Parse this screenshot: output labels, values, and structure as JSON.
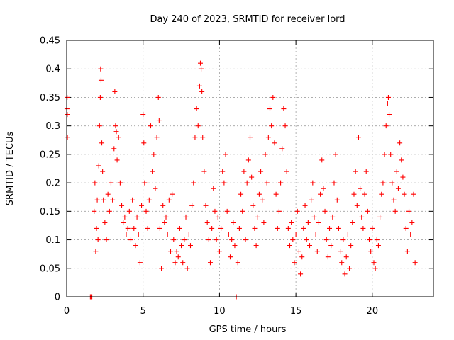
{
  "chart_data": {
    "type": "scatter",
    "title": "Day 240 of 2023, SRMTID for receiver lord",
    "xlabel": "GPS time / hours",
    "ylabel": "SRMTID / TECUs",
    "xlim": [
      0,
      24
    ],
    "ylim": [
      0,
      0.45
    ],
    "xticks": [
      0,
      5,
      10,
      15,
      20
    ],
    "xtick_labels": [
      "0",
      "5",
      "10",
      "15",
      "20"
    ],
    "yticks": [
      0,
      0.05,
      0.1,
      0.15,
      0.2,
      0.25,
      0.3,
      0.35,
      0.4,
      0.45
    ],
    "ytick_labels": [
      "0",
      "0.05",
      "0.1",
      "0.15",
      "0.2",
      "0.25",
      "0.3",
      "0.35",
      "0.4",
      "0.45"
    ],
    "grid": true,
    "marker": "+",
    "marker_color": "#ff0000",
    "series": [
      {
        "name": "SRMTID",
        "points": [
          [
            0.02,
            0.33
          ],
          [
            0.03,
            0.35
          ],
          [
            0.05,
            0.28
          ],
          [
            0.04,
            0.32
          ],
          [
            1.55,
            0.0
          ],
          [
            1.6,
            0.0
          ],
          [
            1.65,
            0.0
          ],
          [
            11.1,
            0.0
          ],
          [
            1.8,
            0.15
          ],
          [
            1.85,
            0.2
          ],
          [
            1.9,
            0.08
          ],
          [
            1.95,
            0.12
          ],
          [
            2.0,
            0.17
          ],
          [
            2.05,
            0.1
          ],
          [
            2.1,
            0.23
          ],
          [
            2.15,
            0.3
          ],
          [
            2.2,
            0.35
          ],
          [
            2.22,
            0.4
          ],
          [
            2.25,
            0.38
          ],
          [
            2.3,
            0.27
          ],
          [
            2.35,
            0.22
          ],
          [
            2.4,
            0.17
          ],
          [
            2.5,
            0.13
          ],
          [
            2.6,
            0.1
          ],
          [
            2.7,
            0.18
          ],
          [
            2.8,
            0.15
          ],
          [
            2.9,
            0.2
          ],
          [
            3.0,
            0.17
          ],
          [
            3.1,
            0.26
          ],
          [
            3.15,
            0.36
          ],
          [
            3.2,
            0.3
          ],
          [
            3.25,
            0.29
          ],
          [
            3.3,
            0.24
          ],
          [
            3.4,
            0.28
          ],
          [
            3.5,
            0.2
          ],
          [
            3.6,
            0.16
          ],
          [
            3.7,
            0.13
          ],
          [
            3.8,
            0.14
          ],
          [
            3.9,
            0.11
          ],
          [
            4.0,
            0.12
          ],
          [
            4.1,
            0.15
          ],
          [
            4.2,
            0.1
          ],
          [
            4.3,
            0.17
          ],
          [
            4.4,
            0.12
          ],
          [
            4.5,
            0.09
          ],
          [
            4.6,
            0.14
          ],
          [
            4.7,
            0.11
          ],
          [
            4.8,
            0.06
          ],
          [
            4.9,
            0.16
          ],
          [
            5.0,
            0.32
          ],
          [
            5.05,
            0.27
          ],
          [
            5.1,
            0.2
          ],
          [
            5.2,
            0.15
          ],
          [
            5.3,
            0.12
          ],
          [
            5.4,
            0.17
          ],
          [
            5.5,
            0.3
          ],
          [
            5.6,
            0.22
          ],
          [
            5.7,
            0.25
          ],
          [
            5.8,
            0.19
          ],
          [
            5.9,
            0.28
          ],
          [
            6.0,
            0.35
          ],
          [
            6.05,
            0.31
          ],
          [
            6.1,
            0.12
          ],
          [
            6.2,
            0.05
          ],
          [
            6.3,
            0.16
          ],
          [
            6.4,
            0.13
          ],
          [
            6.5,
            0.14
          ],
          [
            6.6,
            0.11
          ],
          [
            6.7,
            0.17
          ],
          [
            6.8,
            0.08
          ],
          [
            6.9,
            0.18
          ],
          [
            7.0,
            0.1
          ],
          [
            7.1,
            0.06
          ],
          [
            7.2,
            0.08
          ],
          [
            7.3,
            0.07
          ],
          [
            7.4,
            0.12
          ],
          [
            7.5,
            0.09
          ],
          [
            7.6,
            0.06
          ],
          [
            7.7,
            0.1
          ],
          [
            7.8,
            0.14
          ],
          [
            7.9,
            0.05
          ],
          [
            8.0,
            0.11
          ],
          [
            8.1,
            0.09
          ],
          [
            8.2,
            0.16
          ],
          [
            8.3,
            0.2
          ],
          [
            8.4,
            0.28
          ],
          [
            8.5,
            0.33
          ],
          [
            8.6,
            0.3
          ],
          [
            8.7,
            0.37
          ],
          [
            8.75,
            0.41
          ],
          [
            8.8,
            0.4
          ],
          [
            8.85,
            0.36
          ],
          [
            8.9,
            0.28
          ],
          [
            9.0,
            0.22
          ],
          [
            9.1,
            0.16
          ],
          [
            9.2,
            0.13
          ],
          [
            9.3,
            0.1
          ],
          [
            9.4,
            0.06
          ],
          [
            9.5,
            0.12
          ],
          [
            9.6,
            0.19
          ],
          [
            9.7,
            0.15
          ],
          [
            9.8,
            0.1
          ],
          [
            9.9,
            0.14
          ],
          [
            10.0,
            0.08
          ],
          [
            10.1,
            0.12
          ],
          [
            10.2,
            0.22
          ],
          [
            10.3,
            0.2
          ],
          [
            10.4,
            0.25
          ],
          [
            10.5,
            0.15
          ],
          [
            10.6,
            0.11
          ],
          [
            10.7,
            0.07
          ],
          [
            10.8,
            0.1
          ],
          [
            10.9,
            0.13
          ],
          [
            11.0,
            0.09
          ],
          [
            11.2,
            0.06
          ],
          [
            11.3,
            0.12
          ],
          [
            11.4,
            0.18
          ],
          [
            11.5,
            0.15
          ],
          [
            11.6,
            0.22
          ],
          [
            11.7,
            0.1
          ],
          [
            11.8,
            0.2
          ],
          [
            11.9,
            0.24
          ],
          [
            12.0,
            0.28
          ],
          [
            12.1,
            0.21
          ],
          [
            12.2,
            0.16
          ],
          [
            12.3,
            0.12
          ],
          [
            12.4,
            0.09
          ],
          [
            12.5,
            0.14
          ],
          [
            12.6,
            0.18
          ],
          [
            12.7,
            0.22
          ],
          [
            12.8,
            0.17
          ],
          [
            12.9,
            0.13
          ],
          [
            13.0,
            0.25
          ],
          [
            13.1,
            0.2
          ],
          [
            13.2,
            0.28
          ],
          [
            13.3,
            0.33
          ],
          [
            13.4,
            0.3
          ],
          [
            13.5,
            0.35
          ],
          [
            13.6,
            0.27
          ],
          [
            13.7,
            0.18
          ],
          [
            13.8,
            0.12
          ],
          [
            13.9,
            0.15
          ],
          [
            14.0,
            0.2
          ],
          [
            14.1,
            0.26
          ],
          [
            14.2,
            0.33
          ],
          [
            14.3,
            0.3
          ],
          [
            14.4,
            0.22
          ],
          [
            14.5,
            0.12
          ],
          [
            14.6,
            0.09
          ],
          [
            14.7,
            0.13
          ],
          [
            14.8,
            0.1
          ],
          [
            14.9,
            0.06
          ],
          [
            15.0,
            0.11
          ],
          [
            15.1,
            0.15
          ],
          [
            15.2,
            0.08
          ],
          [
            15.3,
            0.04
          ],
          [
            15.4,
            0.07
          ],
          [
            15.5,
            0.12
          ],
          [
            15.6,
            0.16
          ],
          [
            15.7,
            0.1
          ],
          [
            15.8,
            0.13
          ],
          [
            15.9,
            0.09
          ],
          [
            16.0,
            0.17
          ],
          [
            16.1,
            0.2
          ],
          [
            16.2,
            0.14
          ],
          [
            16.3,
            0.11
          ],
          [
            16.4,
            0.08
          ],
          [
            16.5,
            0.13
          ],
          [
            16.6,
            0.18
          ],
          [
            16.7,
            0.24
          ],
          [
            16.8,
            0.19
          ],
          [
            16.9,
            0.15
          ],
          [
            17.0,
            0.1
          ],
          [
            17.1,
            0.07
          ],
          [
            17.2,
            0.12
          ],
          [
            17.3,
            0.09
          ],
          [
            17.4,
            0.14
          ],
          [
            17.5,
            0.2
          ],
          [
            17.6,
            0.25
          ],
          [
            17.7,
            0.17
          ],
          [
            17.8,
            0.12
          ],
          [
            17.9,
            0.08
          ],
          [
            18.0,
            0.06
          ],
          [
            18.1,
            0.1
          ],
          [
            18.2,
            0.04
          ],
          [
            18.3,
            0.07
          ],
          [
            18.4,
            0.11
          ],
          [
            18.5,
            0.05
          ],
          [
            18.6,
            0.09
          ],
          [
            18.7,
            0.13
          ],
          [
            18.8,
            0.18
          ],
          [
            18.9,
            0.22
          ],
          [
            19.0,
            0.16
          ],
          [
            19.1,
            0.28
          ],
          [
            19.2,
            0.19
          ],
          [
            19.3,
            0.14
          ],
          [
            19.4,
            0.12
          ],
          [
            19.5,
            0.18
          ],
          [
            19.6,
            0.22
          ],
          [
            19.7,
            0.15
          ],
          [
            19.8,
            0.1
          ],
          [
            19.9,
            0.08
          ],
          [
            20.0,
            0.12
          ],
          [
            20.1,
            0.06
          ],
          [
            20.2,
            0.05
          ],
          [
            20.3,
            0.1
          ],
          [
            20.4,
            0.09
          ],
          [
            20.5,
            0.14
          ],
          [
            20.6,
            0.18
          ],
          [
            20.7,
            0.2
          ],
          [
            20.8,
            0.25
          ],
          [
            20.9,
            0.3
          ],
          [
            21.0,
            0.34
          ],
          [
            21.05,
            0.35
          ],
          [
            21.1,
            0.32
          ],
          [
            21.2,
            0.25
          ],
          [
            21.3,
            0.2
          ],
          [
            21.4,
            0.17
          ],
          [
            21.5,
            0.15
          ],
          [
            21.6,
            0.22
          ],
          [
            21.7,
            0.19
          ],
          [
            21.8,
            0.27
          ],
          [
            21.9,
            0.24
          ],
          [
            22.0,
            0.21
          ],
          [
            22.1,
            0.18
          ],
          [
            22.2,
            0.12
          ],
          [
            22.3,
            0.08
          ],
          [
            22.4,
            0.15
          ],
          [
            22.5,
            0.11
          ],
          [
            22.6,
            0.13
          ],
          [
            22.7,
            0.18
          ],
          [
            22.8,
            0.06
          ]
        ]
      }
    ]
  }
}
